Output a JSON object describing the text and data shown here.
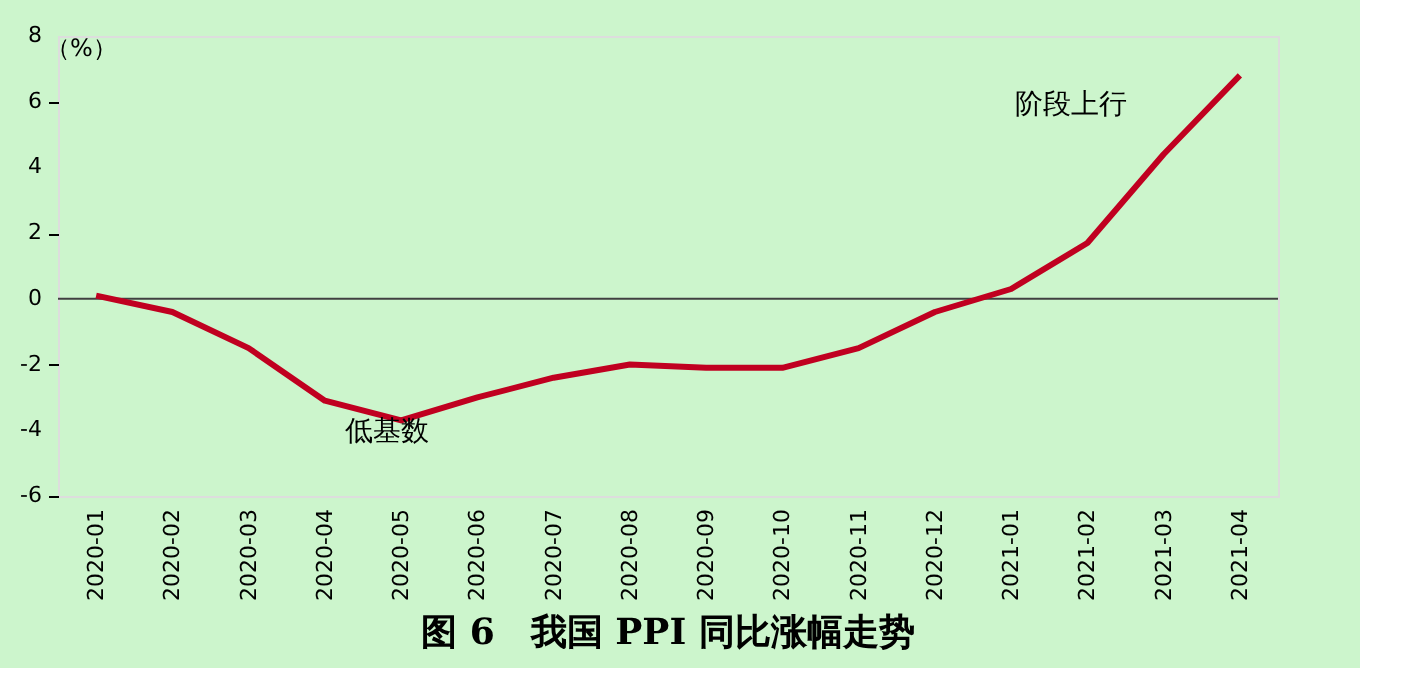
{
  "chart_data": {
    "type": "line",
    "title": "图 6　我国 PPI 同比涨幅走势",
    "ylabel": "（%）",
    "categories": [
      "2020-01",
      "2020-02",
      "2020-03",
      "2020-04",
      "2020-05",
      "2020-06",
      "2020-07",
      "2020-08",
      "2020-09",
      "2020-10",
      "2020-11",
      "2020-12",
      "2021-01",
      "2021-02",
      "2021-03",
      "2021-04"
    ],
    "series": [
      {
        "color": "#c00020",
        "values": [
          0.1,
          -0.4,
          -1.5,
          -3.1,
          -3.7,
          -3.0,
          -2.4,
          -2.0,
          -2.1,
          -2.1,
          -1.5,
          -0.4,
          0.3,
          1.7,
          4.4,
          6.8
        ]
      }
    ],
    "ylim": [
      -6,
      8
    ],
    "yticks": [
      -6,
      -4,
      -2,
      0,
      2,
      4,
      6,
      8
    ],
    "grid": false,
    "marker": "none",
    "line_style": "solid",
    "ref_lines": [
      {
        "axis": "y",
        "value": 0,
        "color": "#404040"
      }
    ],
    "annotations": [
      "低基数",
      "阶段上行"
    ]
  }
}
